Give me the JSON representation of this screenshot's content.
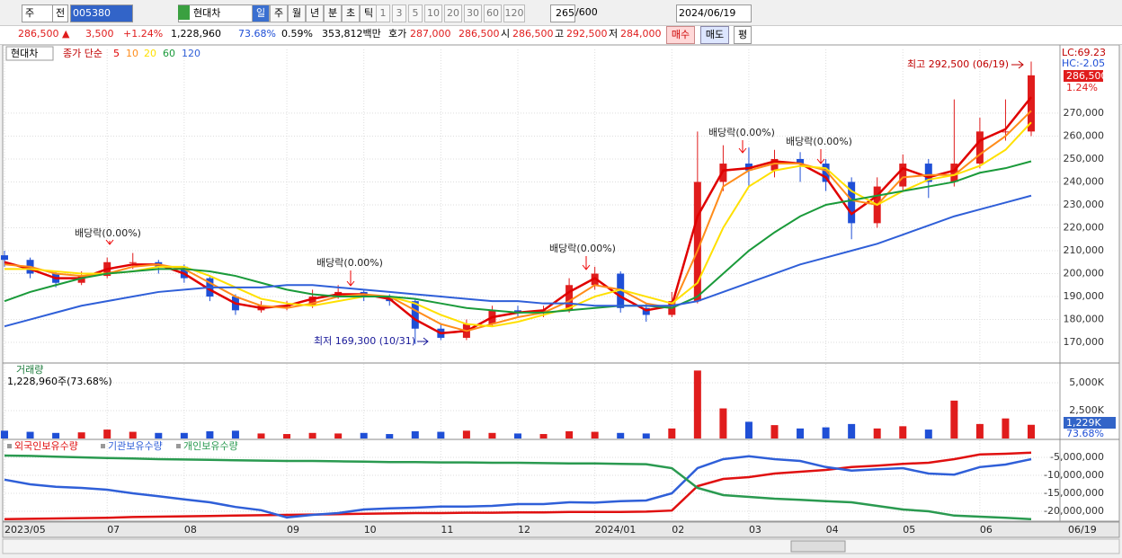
{
  "toolbar": {
    "period": "주",
    "prev": "전",
    "code": "005380",
    "name": "현대차",
    "intervals": [
      "일",
      "주",
      "월",
      "년",
      "분",
      "초",
      "틱"
    ],
    "minutes": [
      "1",
      "3",
      "5",
      "10",
      "20",
      "30",
      "60",
      "120"
    ],
    "count": "265",
    "max": "/600",
    "date": "2024/06/19"
  },
  "quote": {
    "price": "286,500 ▲",
    "change": "3,500",
    "change_rate": "+1.24%",
    "volume": "1,228,960",
    "volume_ratio": "73.68%",
    "turnover": "0.59%",
    "amount": "353,812백만",
    "ask_label": "호가",
    "ask": "287,000",
    "bid": "286,500",
    "open_label": "시",
    "open": "286,500",
    "high_label": "고",
    "high": "292,500",
    "low_label": "저",
    "low": "284,000",
    "buy": "매수",
    "sell": "매도",
    "avg": "평"
  },
  "chart_data": [
    {
      "type": "candlestick",
      "title": "현대차",
      "ma_label": "종가 단순",
      "up_color": "#e01c1c",
      "down_color": "#1f4fd6",
      "open": [
        208000,
        206000,
        200000,
        196000,
        199000,
        205000,
        205000,
        203000,
        198000,
        190000,
        184000,
        186000,
        186000,
        190000,
        192000,
        190000,
        188000,
        176000,
        172000,
        178000,
        184000,
        183000,
        184000,
        195000,
        200000,
        185000,
        182000,
        188000,
        240000,
        248000,
        245000,
        250000,
        248000,
        240000,
        222000,
        238000,
        248000,
        240000,
        248000,
        262000,
        262000
      ],
      "high": [
        210000,
        207000,
        201000,
        201000,
        207000,
        209000,
        206000,
        204000,
        199000,
        191000,
        188000,
        188000,
        193000,
        195000,
        193000,
        191000,
        189000,
        178000,
        180000,
        186000,
        186000,
        186000,
        198000,
        203000,
        201000,
        187000,
        192000,
        262000,
        256000,
        255000,
        254000,
        253000,
        250000,
        242000,
        242000,
        252000,
        250000,
        276000,
        268000,
        276000,
        292500
      ],
      "low": [
        203000,
        198000,
        194000,
        195000,
        198000,
        202000,
        200000,
        196000,
        188000,
        182000,
        183000,
        184000,
        185000,
        189000,
        188000,
        186000,
        169300,
        171000,
        171000,
        177000,
        181000,
        181000,
        183000,
        193000,
        183000,
        179000,
        181000,
        187000,
        236000,
        238000,
        242000,
        240000,
        236000,
        215000,
        220000,
        236000,
        233000,
        238000,
        246000,
        258000,
        260000
      ],
      "close": [
        206000,
        200000,
        196000,
        199000,
        205000,
        205000,
        203000,
        198000,
        190000,
        184000,
        186000,
        186000,
        190000,
        192000,
        190000,
        188000,
        176000,
        172000,
        178000,
        184000,
        183000,
        184000,
        195000,
        200000,
        185000,
        182000,
        188000,
        240000,
        248000,
        245000,
        250000,
        248000,
        240000,
        222000,
        238000,
        248000,
        240000,
        248000,
        262000,
        262000,
        286500
      ],
      "series": [
        {
          "name": "5",
          "color": "#e00000",
          "values": [
            205000,
            202000,
            198000,
            198000,
            202000,
            204000,
            204000,
            200000,
            193000,
            187000,
            185000,
            186000,
            189000,
            191000,
            191000,
            189000,
            180000,
            174000,
            175000,
            181000,
            183000,
            184000,
            192000,
            198000,
            190000,
            184000,
            186000,
            225000,
            245000,
            246000,
            249000,
            248000,
            242000,
            226000,
            234000,
            246000,
            242000,
            245000,
            258000,
            263000,
            277000
          ]
        },
        {
          "name": "10",
          "color": "#ff8c1a",
          "values": [
            204000,
            203000,
            200000,
            199000,
            200000,
            203000,
            204000,
            202000,
            196000,
            190000,
            186000,
            185000,
            187000,
            190000,
            191000,
            190000,
            184000,
            178000,
            175000,
            178000,
            181000,
            183000,
            188000,
            195000,
            193000,
            187000,
            185000,
            210000,
            238000,
            245000,
            248000,
            248000,
            245000,
            232000,
            230000,
            242000,
            243000,
            243000,
            252000,
            260000,
            271000
          ]
        },
        {
          "name": "20",
          "color": "#ffe000",
          "values": [
            202000,
            202000,
            201000,
            200000,
            200000,
            201000,
            203000,
            203000,
            199000,
            194000,
            189000,
            187000,
            186000,
            188000,
            190000,
            190000,
            187000,
            182000,
            178000,
            177000,
            179000,
            182000,
            185000,
            190000,
            193000,
            190000,
            187000,
            196000,
            220000,
            238000,
            245000,
            247000,
            246000,
            236000,
            230000,
            236000,
            241000,
            243000,
            247000,
            254000,
            266000
          ]
        },
        {
          "name": "60",
          "color": "#1a9a3a",
          "values": [
            188000,
            192000,
            195000,
            198000,
            200000,
            201000,
            202000,
            202000,
            201000,
            199000,
            196000,
            193000,
            191000,
            190000,
            190000,
            190000,
            189000,
            187000,
            185000,
            184000,
            183000,
            183000,
            184000,
            185000,
            186000,
            186000,
            185000,
            190000,
            200000,
            210000,
            218000,
            225000,
            230000,
            232000,
            234000,
            236000,
            238000,
            240000,
            244000,
            246000,
            249000
          ]
        },
        {
          "name": "120",
          "color": "#2f5fd8",
          "values": [
            177000,
            180000,
            183000,
            186000,
            188000,
            190000,
            192000,
            193000,
            194000,
            194000,
            194000,
            195000,
            195000,
            194000,
            193000,
            192000,
            191000,
            190000,
            189000,
            188000,
            188000,
            187000,
            187000,
            186000,
            186000,
            186000,
            186000,
            188000,
            192000,
            196000,
            200000,
            204000,
            207000,
            210000,
            213000,
            217000,
            221000,
            225000,
            228000,
            231000,
            234000
          ]
        }
      ],
      "ylim": [
        161400,
        297800
      ],
      "yticks": [
        {
          "value": 170000,
          "label": "170,000"
        },
        {
          "value": 180000,
          "label": "180,000"
        },
        {
          "value": 190000,
          "label": "190,000"
        },
        {
          "value": 200000,
          "label": "200,000"
        },
        {
          "value": 210000,
          "label": "210,000"
        },
        {
          "value": 220000,
          "label": "220,000"
        },
        {
          "value": 230000,
          "label": "230,000"
        },
        {
          "value": 240000,
          "label": "240,000"
        },
        {
          "value": 250000,
          "label": "250,000"
        },
        {
          "value": 260000,
          "label": "260,000"
        },
        {
          "value": 270000,
          "label": "270,000"
        }
      ],
      "grid": true,
      "annotations": [
        "배당락(0.00%)",
        "배당락(0.00%)",
        "배당락(0.00%)",
        "배당락(0.00%)",
        "배당락(0.00%)"
      ],
      "low_note": "최저 169,300 (10/31)",
      "high_note": "최고 292,500 (06/19)",
      "lc": "LC:69.23",
      "hc": "HC:-2.05",
      "last_label": "286,500",
      "last_rate": "1.24%"
    },
    {
      "type": "bar",
      "title": "거래량",
      "subtitle": "1,228,960주(73.68%)",
      "values": [
        700,
        600,
        500,
        550,
        800,
        600,
        500,
        500,
        650,
        700,
        450,
        400,
        500,
        450,
        500,
        400,
        650,
        600,
        700,
        500,
        450,
        400,
        650,
        600,
        500,
        450,
        900,
        6100,
        2700,
        1500,
        1200,
        900,
        1000,
        1300,
        900,
        1100,
        800,
        3400,
        1300,
        1800,
        1229
      ],
      "ylim": [
        0,
        6694
      ],
      "yticks": [
        {
          "value": 2500,
          "label": "2,500K"
        },
        {
          "value": 5000,
          "label": "5,000K"
        }
      ],
      "last_label": "1,229K",
      "last_rate": "73.68%"
    },
    {
      "type": "line",
      "categories": [
        "2023/05",
        null,
        null,
        null,
        "07",
        null,
        null,
        "08",
        null,
        null,
        null,
        "09",
        null,
        null,
        "10",
        null,
        null,
        "11",
        null,
        null,
        "12",
        null,
        null,
        "2024/01",
        null,
        null,
        "02",
        null,
        null,
        "03",
        null,
        null,
        "04",
        null,
        null,
        "05",
        null,
        null,
        "06",
        null,
        null
      ],
      "series": [
        {
          "name": "외국인보유수량",
          "color": "#e01010",
          "values": [
            -22200000,
            -22100000,
            -22000000,
            -21900000,
            -21800000,
            -21600000,
            -21500000,
            -21400000,
            -21300000,
            -21200000,
            -21100000,
            -21000000,
            -20900000,
            -20800000,
            -20700000,
            -20600000,
            -20500000,
            -20500000,
            -20400000,
            -20400000,
            -20300000,
            -20300000,
            -20200000,
            -20200000,
            -20200000,
            -20100000,
            -19800000,
            -13000000,
            -11000000,
            -10500000,
            -9500000,
            -9000000,
            -8500000,
            -7700000,
            -7300000,
            -6800000,
            -6500000,
            -5500000,
            -4200000,
            -4000000,
            -3700000
          ]
        },
        {
          "name": "기관보유수량",
          "color": "#2f5fd8",
          "values": [
            -11200000,
            -12500000,
            -13200000,
            -13500000,
            -14000000,
            -15000000,
            -15800000,
            -16700000,
            -17500000,
            -18800000,
            -19700000,
            -21700000,
            -21000000,
            -20500000,
            -19500000,
            -19200000,
            -19000000,
            -18700000,
            -18700000,
            -18500000,
            -18000000,
            -18000000,
            -17500000,
            -17600000,
            -17200000,
            -17000000,
            -15000000,
            -8000000,
            -5500000,
            -4700000,
            -5500000,
            -6000000,
            -7700000,
            -8700000,
            -8300000,
            -8000000,
            -9500000,
            -9800000,
            -7700000,
            -7000000,
            -5500000
          ]
        },
        {
          "name": "개인보유수량",
          "color": "#2a9a50",
          "values": [
            -4500000,
            -4600000,
            -4800000,
            -5000000,
            -5200000,
            -5300000,
            -5500000,
            -5600000,
            -5700000,
            -5800000,
            -5900000,
            -6000000,
            -6000000,
            -6100000,
            -6200000,
            -6300000,
            -6300000,
            -6400000,
            -6400000,
            -6500000,
            -6500000,
            -6600000,
            -6700000,
            -6700000,
            -6800000,
            -6900000,
            -8000000,
            -13500000,
            -15500000,
            -16000000,
            -16500000,
            -16800000,
            -17200000,
            -17500000,
            -18500000,
            -19500000,
            -20000000,
            -21200000,
            -21500000,
            -21800000,
            -22200000
          ]
        }
      ],
      "ylim": [
        -22750000,
        -250000
      ],
      "yticks": [
        {
          "value": -5000000,
          "label": "-5,000,000"
        },
        {
          "value": -10000000,
          "label": "-10,000,000"
        },
        {
          "value": -15000000,
          "label": "-15,000,000"
        },
        {
          "value": -20000000,
          "label": "-20,000,000"
        }
      ],
      "last_date": "06/19"
    }
  ]
}
